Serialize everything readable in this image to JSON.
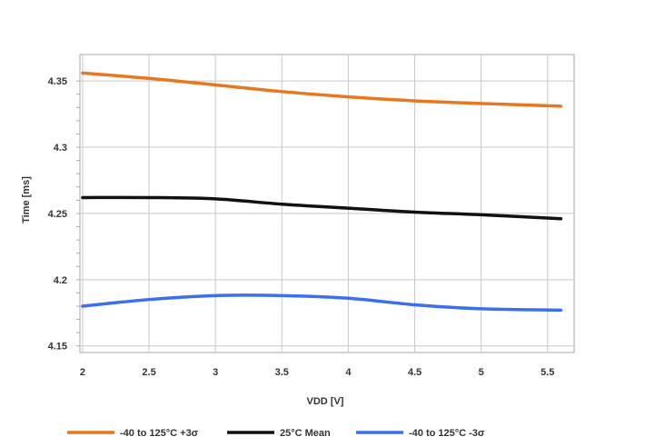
{
  "chart_data": {
    "type": "line",
    "title": "",
    "xlabel": "VDD [V]",
    "ylabel": "Time [ms]",
    "xlim": [
      1.98,
      5.7
    ],
    "ylim": [
      4.145,
      4.37
    ],
    "xticks": [
      2,
      2.5,
      3,
      3.5,
      4,
      4.5,
      5,
      5.5
    ],
    "xtick_labels": [
      "2",
      "2.5",
      "3",
      "3.5",
      "4",
      "4.5",
      "5",
      "5.5"
    ],
    "yticks": [
      4.15,
      4.2,
      4.25,
      4.3,
      4.35
    ],
    "ytick_labels": [
      "4.15",
      "4.2",
      "4.25",
      "4.3",
      "4.35"
    ],
    "grid": true,
    "legend_position": "bottom",
    "series": [
      {
        "name": "-40 to 125°C +3σ",
        "color": "#e8771e",
        "x": [
          2,
          2.5,
          3,
          3.5,
          4,
          4.5,
          5,
          5.6
        ],
        "y": [
          4.356,
          4.352,
          4.347,
          4.342,
          4.338,
          4.335,
          4.333,
          4.331
        ]
      },
      {
        "name": "25°C Mean",
        "color": "#111111",
        "x": [
          2,
          2.5,
          3,
          3.5,
          4,
          4.5,
          5,
          5.6
        ],
        "y": [
          4.262,
          4.262,
          4.261,
          4.257,
          4.254,
          4.251,
          4.249,
          4.246
        ]
      },
      {
        "name": "-40 to 125°C -3σ",
        "color": "#3b6ff0",
        "x": [
          2,
          2.5,
          3,
          3.5,
          4,
          4.5,
          5,
          5.6
        ],
        "y": [
          4.18,
          4.185,
          4.188,
          4.188,
          4.186,
          4.181,
          4.178,
          4.177
        ]
      }
    ]
  }
}
